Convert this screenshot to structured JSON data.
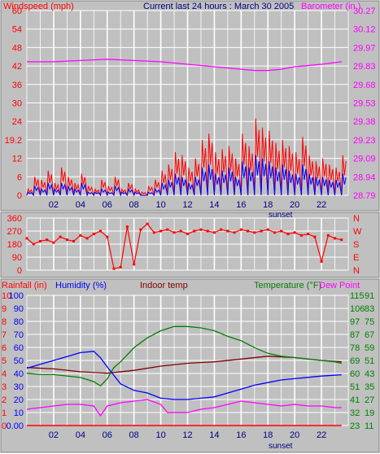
{
  "header": {
    "title": "Current last 24 hours : March 30 2005",
    "wind_label": "Windspeed (mph)",
    "baro_label": "Barometer (in.)"
  },
  "bottom_header": {
    "rainfall_label": "Rainfall (in)",
    "humidity_label": "Humidity (%)",
    "indoor_label": "Indoor temp",
    "temperature_label": "Temperature (°F)",
    "dewpoint_label": "Dew Point"
  },
  "sunset_label": "sunset",
  "colors": {
    "background": "#c0c0c0",
    "grid": "#ffffff",
    "wind_gust": "#ff0000",
    "wind_avg": "#0000ff",
    "barometer": "#ff00ff",
    "direction": "#ff0000",
    "rain": "#ff0000",
    "humidity": "#0000ff",
    "indoor": "#800000",
    "temperature": "#008000",
    "dewpoint": "#ff00ff",
    "title": "#000080"
  },
  "chart_data": [
    {
      "type": "line",
      "x_ticks": [
        "02",
        "04",
        "06",
        "08",
        "10",
        "12",
        "14",
        "16",
        "18",
        "20",
        "22"
      ],
      "y_left": {
        "label": "Windspeed (mph)",
        "ticks": [
          "0",
          "6",
          "12",
          "19.2",
          "24",
          "30",
          "36",
          "42",
          "48",
          "54",
          "60"
        ],
        "range": [
          0,
          60
        ]
      },
      "y_right": {
        "label": "Barometer (in.)",
        "ticks": [
          "28.79",
          "28.94",
          "29.09",
          "29.23",
          "29.38",
          "29.53",
          "29.68",
          "29.83",
          "29.97",
          "30.12",
          "30.27"
        ],
        "range": [
          28.79,
          30.27
        ]
      },
      "series": [
        {
          "name": "Windspeed (mph)",
          "x": [
            0.0,
            0.5,
            1.0,
            1.5,
            2.0,
            2.5,
            3.0,
            3.5,
            4.0,
            4.5,
            5.0,
            5.5,
            6.0,
            6.5,
            7.0,
            7.5,
            8.0,
            8.5,
            9.0,
            9.5,
            10.0,
            10.5,
            11.0,
            11.5,
            12.0,
            12.5,
            13.0,
            13.5,
            14.0,
            14.5,
            15.0,
            15.5,
            16.0,
            16.5,
            17.0,
            17.5,
            18.0,
            18.5,
            19.0,
            19.5,
            20.0,
            20.5,
            21.0,
            21.5,
            22.0,
            22.5,
            23.0,
            23.5
          ],
          "values": [
            2,
            6,
            5,
            8,
            4,
            9,
            6,
            4,
            7,
            3,
            2,
            5,
            3,
            6,
            2,
            4,
            2,
            1,
            3,
            5,
            8,
            10,
            14,
            13,
            9,
            12,
            18,
            20,
            14,
            15,
            16,
            12,
            20,
            16,
            25,
            22,
            21,
            17,
            18,
            16,
            14,
            19,
            13,
            11,
            12,
            10,
            9,
            13
          ]
        },
        {
          "name": "Windspeed avg",
          "x": [
            0.0,
            0.5,
            1.0,
            1.5,
            2.0,
            2.5,
            3.0,
            3.5,
            4.0,
            4.5,
            5.0,
            5.5,
            6.0,
            6.5,
            7.0,
            7.5,
            8.0,
            8.5,
            9.0,
            9.5,
            10.0,
            10.5,
            11.0,
            11.5,
            12.0,
            12.5,
            13.0,
            13.5,
            14.0,
            14.5,
            15.0,
            15.5,
            16.0,
            16.5,
            17.0,
            17.5,
            18.0,
            18.5,
            19.0,
            19.5,
            20.0,
            20.5,
            21.0,
            21.5,
            22.0,
            22.5,
            23.0,
            23.5
          ],
          "values": [
            1,
            3,
            2,
            4,
            2,
            4,
            3,
            2,
            4,
            1,
            1,
            2,
            1,
            3,
            1,
            2,
            1,
            0,
            1,
            2,
            4,
            5,
            7,
            6,
            4,
            6,
            9,
            10,
            7,
            8,
            9,
            6,
            11,
            9,
            13,
            12,
            11,
            9,
            10,
            8,
            7,
            10,
            7,
            6,
            6,
            5,
            5,
            7
          ]
        },
        {
          "name": "Barometer (in.)",
          "x": [
            0,
            2,
            4,
            6,
            8,
            10,
            12,
            14,
            16,
            17,
            18,
            19,
            20,
            22,
            23.5
          ],
          "values": [
            29.86,
            29.86,
            29.87,
            29.88,
            29.87,
            29.86,
            29.84,
            29.82,
            29.8,
            29.79,
            29.79,
            29.8,
            29.82,
            29.84,
            29.86
          ]
        }
      ]
    },
    {
      "type": "line",
      "x_ticks": [
        "02",
        "04",
        "06",
        "08",
        "10",
        "12",
        "14",
        "16",
        "18",
        "20",
        "22"
      ],
      "y_left": {
        "ticks": [
          "0",
          "90",
          "180",
          "270",
          "360"
        ],
        "range": [
          0,
          360
        ]
      },
      "y_right": {
        "ticks": [
          "N",
          "E",
          "S",
          "W",
          "N"
        ]
      },
      "series": [
        {
          "name": "Wind direction",
          "x": [
            0.0,
            0.5,
            1.0,
            1.5,
            2.0,
            2.5,
            3.0,
            3.5,
            4.0,
            4.5,
            5.0,
            5.5,
            6.0,
            6.5,
            7.0,
            7.5,
            8.0,
            8.5,
            9.0,
            9.5,
            10.0,
            10.5,
            11.0,
            11.5,
            12.0,
            12.5,
            13.0,
            13.5,
            14.0,
            14.5,
            15.0,
            15.5,
            16.0,
            16.5,
            17.0,
            17.5,
            18.0,
            18.5,
            19.0,
            19.5,
            20.0,
            20.5,
            21.0,
            21.5,
            22.0,
            22.5,
            23.0,
            23.5
          ],
          "values": [
            220,
            180,
            200,
            210,
            190,
            230,
            210,
            200,
            240,
            220,
            250,
            270,
            230,
            10,
            20,
            300,
            40,
            280,
            320,
            260,
            270,
            280,
            260,
            270,
            250,
            270,
            280,
            270,
            260,
            280,
            270,
            260,
            280,
            270,
            260,
            270,
            280,
            260,
            270,
            250,
            260,
            240,
            250,
            230,
            60,
            240,
            220,
            210
          ]
        }
      ]
    },
    {
      "type": "line",
      "x_ticks": [
        "02",
        "04",
        "06",
        "08",
        "10",
        "12",
        "14",
        "16",
        "18",
        "20",
        "22"
      ],
      "y_left": {
        "label": "Rainfall (in)",
        "rain_ticks": [
          "0",
          "1",
          "2",
          "3",
          "4",
          "5",
          "6",
          "7",
          "8",
          "9",
          "10"
        ],
        "humidity_ticks": [
          "0.00",
          "10",
          "20",
          "30",
          "40",
          "50",
          "60",
          "70",
          "80",
          "90",
          "100"
        ],
        "range": [
          0,
          100
        ]
      },
      "y_right": {
        "label": "Temperature (°F)",
        "temp_ticks": [
          "23",
          "32",
          "41",
          "51",
          "60",
          "69",
          "78",
          "87",
          "97",
          "106",
          "115"
        ],
        "dew_ticks": [
          "11",
          "19",
          "27",
          "35",
          "43",
          "51",
          "59",
          "67",
          "75",
          "83",
          "91"
        ],
        "range": [
          23,
          115
        ]
      },
      "series": [
        {
          "name": "Humidity (%)",
          "x": [
            0,
            1,
            2,
            3,
            4,
            5,
            5.5,
            6,
            7,
            8,
            9,
            10,
            11,
            12,
            13,
            14,
            15,
            16,
            17,
            18,
            19,
            20,
            21,
            22,
            23.5
          ],
          "values": [
            44,
            47,
            50,
            53,
            56,
            57,
            52,
            45,
            32,
            27,
            25,
            21,
            20,
            20,
            21,
            22,
            25,
            28,
            31,
            33,
            35,
            36,
            37,
            38,
            39
          ]
        },
        {
          "name": "Indoor temp",
          "x": [
            0,
            2,
            4,
            6,
            8,
            10,
            12,
            14,
            16,
            18,
            20,
            22,
            23.5
          ],
          "values": [
            64,
            63,
            61,
            60,
            62,
            65,
            67,
            68,
            70,
            72,
            71,
            69,
            68
          ]
        },
        {
          "name": "Temperature (°F)",
          "x": [
            0,
            1,
            2,
            3,
            4,
            5,
            5.5,
            6,
            6.5,
            7,
            8,
            9,
            10,
            11,
            12,
            13,
            14,
            15,
            16,
            17,
            18,
            19,
            20,
            21,
            22,
            23,
            23.5
          ],
          "values": [
            60,
            59,
            59,
            58,
            57,
            54,
            51,
            56,
            64,
            68,
            78,
            85,
            90,
            93,
            93,
            92,
            90,
            86,
            83,
            78,
            74,
            72,
            71,
            70,
            69,
            68,
            67
          ]
        },
        {
          "name": "Dew Point",
          "x": [
            0,
            1,
            2,
            3,
            4,
            5,
            5.5,
            6,
            7,
            8,
            9,
            10,
            10.5,
            11,
            12,
            13,
            14,
            15,
            16,
            17,
            18,
            19,
            20,
            21,
            22,
            23,
            23.5
          ],
          "values": [
            21,
            22,
            23,
            24,
            24,
            23,
            17,
            23,
            25,
            26,
            27,
            24,
            19,
            19,
            19,
            21,
            22,
            24,
            26,
            25,
            24,
            23,
            24,
            23,
            23,
            22,
            22
          ]
        },
        {
          "name": "Rainfall (in)",
          "x": [
            0,
            23.5
          ],
          "values": [
            0,
            0
          ]
        }
      ]
    }
  ]
}
